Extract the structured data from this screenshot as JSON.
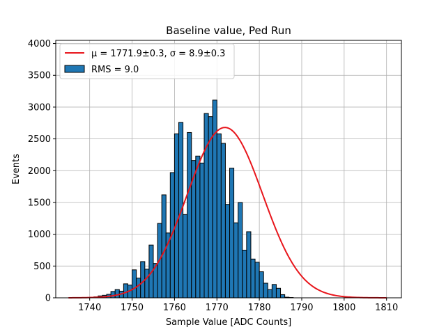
{
  "chart_data": {
    "type": "bar",
    "title": "Baseline value, Ped Run",
    "xlabel": "Sample Value [ADC Counts]",
    "ylabel": "Events",
    "xlim": [
      1732,
      1813.5
    ],
    "ylim": [
      0,
      4050
    ],
    "xticks": [
      "1740",
      "1750",
      "1760",
      "1770",
      "1780",
      "1790",
      "1800",
      "1810"
    ],
    "yticks": [
      "0",
      "500",
      "1000",
      "1500",
      "2000",
      "2500",
      "3000",
      "3500",
      "4000"
    ],
    "grid": true,
    "legend_position": "top-left",
    "bar_color": "#1f77b4",
    "fit_color": "#e8151b",
    "histogram": {
      "label": "RMS = 9.0",
      "bin_start": 1735,
      "bin_width": 1,
      "counts": [
        0,
        0,
        2,
        5,
        5,
        8,
        15,
        30,
        40,
        55,
        100,
        130,
        105,
        220,
        200,
        440,
        310,
        570,
        450,
        830,
        540,
        1170,
        1620,
        1020,
        1970,
        2580,
        2760,
        1310,
        2600,
        2160,
        2230,
        2120,
        2900,
        2850,
        3110,
        2580,
        2430,
        1470,
        2040,
        1180,
        1500,
        750,
        1040,
        610,
        560,
        410,
        230,
        130,
        210,
        150,
        50,
        10,
        5,
        0,
        0,
        0,
        0,
        0,
        0,
        0,
        0,
        0,
        0,
        0,
        0,
        0,
        0,
        0,
        0,
        0,
        0,
        0,
        0,
        0,
        0
      ]
    },
    "fit": {
      "type": "gaussian",
      "mu": 1771.9,
      "sigma": 8.9,
      "amplitude": 2680,
      "x_range": [
        1735,
        1810
      ],
      "label_mu": "μ = 1771.9±0.3, ",
      "label_sigma": "σ = 8.9±0.3"
    }
  }
}
